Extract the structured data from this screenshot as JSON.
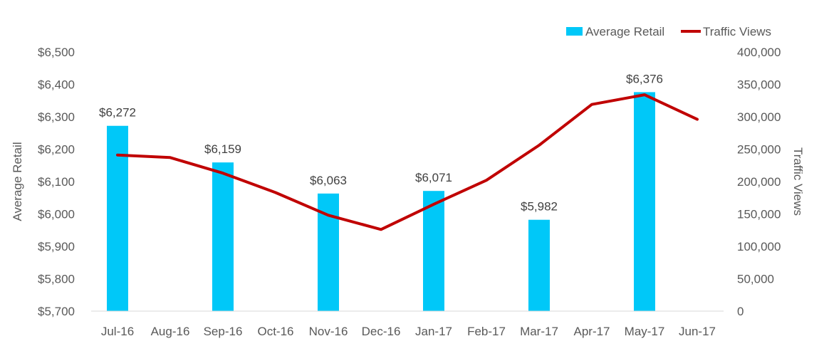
{
  "chart_data": {
    "type": "bar",
    "categories": [
      "Jul-16",
      "Aug-16",
      "Sep-16",
      "Oct-16",
      "Nov-16",
      "Dec-16",
      "Jan-17",
      "Feb-17",
      "Mar-17",
      "Apr-17",
      "May-17",
      "Jun-17"
    ],
    "series": [
      {
        "name": "Average Retail",
        "type": "bar",
        "axis": "left",
        "color": "#00C8F8",
        "values": [
          6272,
          null,
          6159,
          null,
          6063,
          null,
          6071,
          null,
          5982,
          null,
          6376,
          null
        ],
        "labels": [
          "$6,272",
          "",
          "$6,159",
          "",
          "$6,063",
          "",
          "$6,071",
          "",
          "$5,982",
          "",
          "$6,376",
          ""
        ]
      },
      {
        "name": "Traffic Views",
        "type": "line",
        "axis": "right",
        "color": "#C00000",
        "values": [
          241000,
          237000,
          213000,
          183000,
          148000,
          126000,
          165000,
          202000,
          256000,
          319000,
          334000,
          296000
        ]
      }
    ],
    "y_left": {
      "label": "Average Retail",
      "ylim": [
        5700,
        6500
      ],
      "ticks": [
        "$5,700",
        "$5,800",
        "$5,900",
        "$6,000",
        "$6,100",
        "$6,200",
        "$6,300",
        "$6,400",
        "$6,500"
      ]
    },
    "y_right": {
      "label": "Traffic Views",
      "ylim": [
        0,
        400000
      ],
      "ticks": [
        "0",
        "50,000",
        "100,000",
        "150,000",
        "200,000",
        "250,000",
        "300,000",
        "350,000",
        "400,000"
      ]
    },
    "grid": false,
    "legend": "top-right"
  }
}
